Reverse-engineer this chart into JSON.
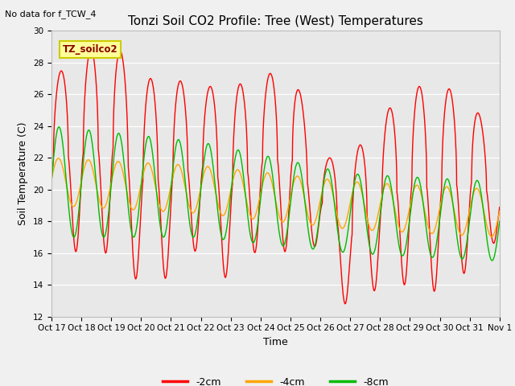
{
  "title": "Tonzi Soil CO2 Profile: Tree (West) Temperatures",
  "subtitle": "No data for f_TCW_4",
  "xlabel": "Time",
  "ylabel": "Soil Temperature (C)",
  "ylim": [
    12,
    30
  ],
  "yticks": [
    12,
    14,
    16,
    18,
    20,
    22,
    24,
    26,
    28,
    30
  ],
  "xlim": [
    0,
    15
  ],
  "x_tick_labels": [
    "Oct 17",
    "Oct 18",
    "Oct 19",
    "Oct 20",
    "Oct 21",
    "Oct 22",
    "Oct 23",
    "Oct 24",
    "Oct 25",
    "Oct 26",
    "Oct 27",
    "Oct 28",
    "Oct 29",
    "Oct 30",
    "Oct 31",
    "Nov 1"
  ],
  "line_colors": [
    "#ff0000",
    "#ffa500",
    "#00bb00"
  ],
  "line_labels": [
    "-2cm",
    "-4cm",
    "-8cm"
  ],
  "line_width": 1.0,
  "legend_label": "TZ_soilco2",
  "legend_box_facecolor": "#ffff99",
  "legend_box_edgecolor": "#cccc00",
  "fig_bg": "#f0f0f0",
  "plot_bg": "#e8e8e8",
  "grid_color": "#ffffff",
  "title_fontsize": 11,
  "label_fontsize": 9,
  "tick_fontsize": 7.5
}
